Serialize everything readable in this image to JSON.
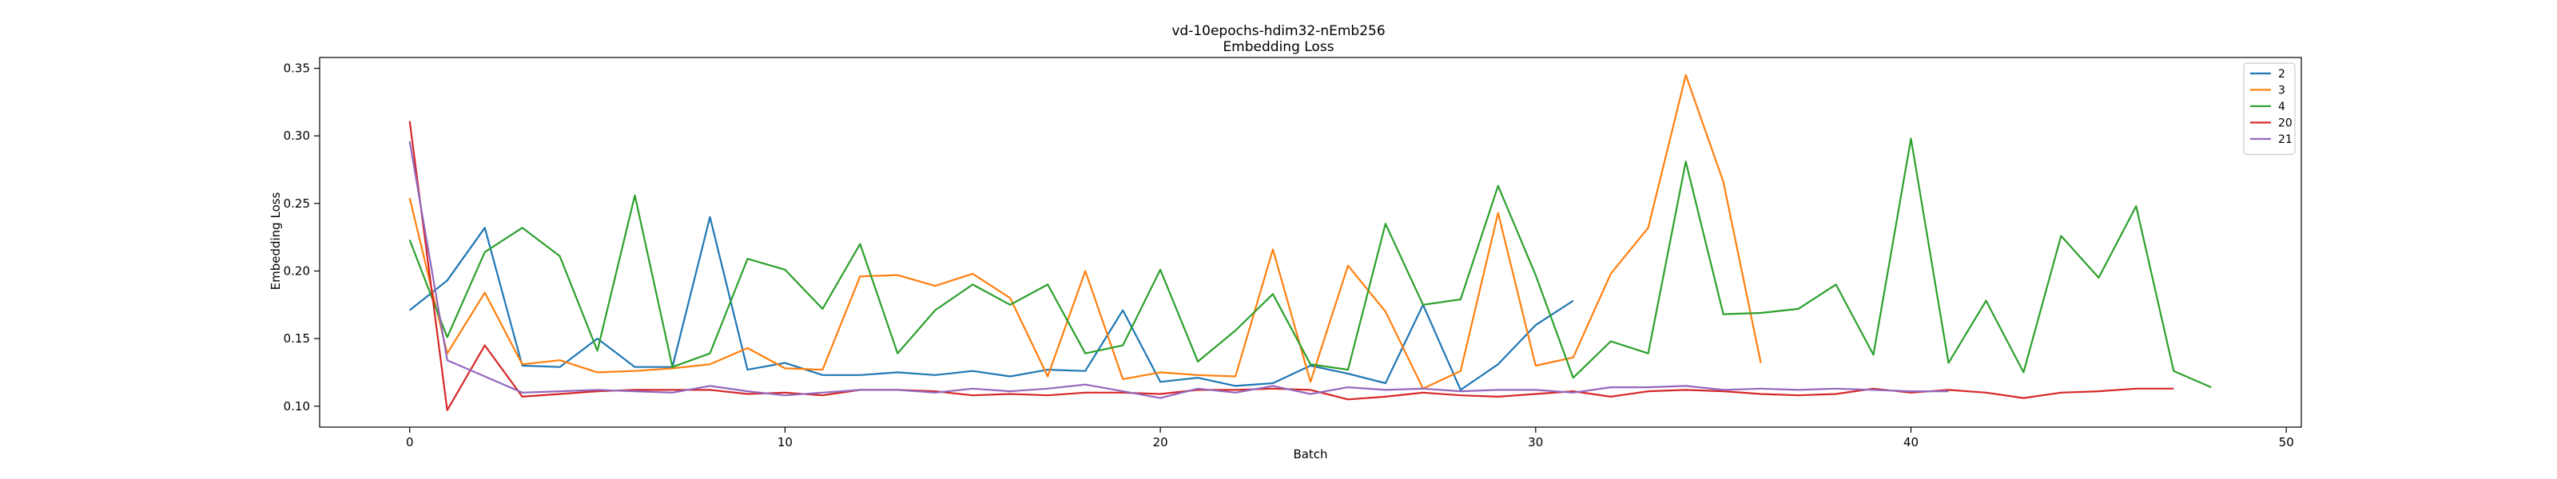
{
  "chart_data": {
    "type": "line",
    "title": "vd-10epochs-hdim32-nEmb256",
    "subtitle": "Embedding Loss",
    "xlabel": "Batch",
    "ylabel": "Embedding Loss",
    "xlim": [
      -2.4,
      50.4
    ],
    "ylim": [
      0.0845,
      0.358
    ],
    "xticks": [
      0,
      10,
      20,
      30,
      40,
      50
    ],
    "yticks": [
      0.1,
      0.15,
      0.2,
      0.25,
      0.3,
      0.35
    ],
    "ytick_labels": [
      "0.10",
      "0.15",
      "0.20",
      "0.25",
      "0.30",
      "0.35"
    ],
    "grid": false,
    "legend_position": "top-right",
    "series": [
      {
        "name": "2",
        "color": "#1f77b4",
        "x": [
          0,
          1,
          2,
          3,
          4,
          5,
          6,
          7,
          8,
          9,
          10,
          11,
          12,
          13,
          14,
          15,
          16,
          17,
          18,
          19,
          20,
          21,
          22,
          23,
          24,
          25,
          26,
          27,
          28,
          29,
          30,
          31
        ],
        "values": [
          0.171,
          0.193,
          0.232,
          0.13,
          0.129,
          0.15,
          0.129,
          0.129,
          0.24,
          0.127,
          0.132,
          0.123,
          0.123,
          0.125,
          0.123,
          0.126,
          0.122,
          0.127,
          0.126,
          0.171,
          0.118,
          0.121,
          0.115,
          0.117,
          0.13,
          0.124,
          0.117,
          0.175,
          0.112,
          0.131,
          0.16,
          0.178
        ]
      },
      {
        "name": "3",
        "color": "#ff7f0e",
        "x": [
          0,
          1,
          2,
          3,
          4,
          5,
          6,
          7,
          8,
          9,
          10,
          11,
          12,
          13,
          14,
          15,
          16,
          17,
          18,
          19,
          20,
          21,
          22,
          23,
          24,
          25,
          26,
          27,
          28,
          29,
          30,
          31,
          32,
          33,
          34,
          35,
          36
        ],
        "values": [
          0.254,
          0.139,
          0.184,
          0.131,
          0.134,
          0.125,
          0.126,
          0.128,
          0.131,
          0.143,
          0.128,
          0.127,
          0.196,
          0.197,
          0.189,
          0.198,
          0.18,
          0.122,
          0.2,
          0.12,
          0.125,
          0.123,
          0.122,
          0.216,
          0.118,
          0.204,
          0.17,
          0.113,
          0.126,
          0.243,
          0.13,
          0.136,
          0.198,
          0.232,
          0.345,
          0.266,
          0.132
        ]
      },
      {
        "name": "4",
        "color": "#2ca02c",
        "x": [
          0,
          1,
          2,
          3,
          4,
          5,
          6,
          7,
          8,
          9,
          10,
          11,
          12,
          13,
          14,
          15,
          16,
          17,
          18,
          19,
          20,
          21,
          22,
          23,
          24,
          25,
          26,
          27,
          28,
          29,
          30,
          31,
          32,
          33,
          34,
          35,
          36,
          37,
          38,
          39,
          40,
          41,
          42,
          43,
          44,
          45,
          46,
          47,
          48
        ],
        "values": [
          0.223,
          0.151,
          0.214,
          0.232,
          0.211,
          0.141,
          0.256,
          0.129,
          0.139,
          0.209,
          0.201,
          0.172,
          0.22,
          0.139,
          0.171,
          0.19,
          0.175,
          0.19,
          0.139,
          0.145,
          0.201,
          0.133,
          0.156,
          0.183,
          0.131,
          0.127,
          0.235,
          0.175,
          0.179,
          0.263,
          0.197,
          0.121,
          0.148,
          0.139,
          0.281,
          0.168,
          0.169,
          0.172,
          0.19,
          0.138,
          0.298,
          0.132,
          0.178,
          0.125,
          0.226,
          0.195,
          0.248,
          0.126,
          0.114
        ]
      },
      {
        "name": "20",
        "color": "#d62728",
        "x": [
          0,
          1,
          2,
          3,
          4,
          5,
          6,
          7,
          8,
          9,
          10,
          11,
          12,
          13,
          14,
          15,
          16,
          17,
          18,
          19,
          20,
          21,
          22,
          23,
          24,
          25,
          26,
          27,
          28,
          29,
          30,
          31,
          32,
          33,
          34,
          35,
          36,
          37,
          38,
          39,
          40,
          41,
          42,
          43,
          44,
          45,
          46,
          47
        ],
        "values": [
          0.311,
          0.097,
          0.145,
          0.107,
          0.109,
          0.111,
          0.112,
          0.112,
          0.112,
          0.109,
          0.11,
          0.108,
          0.112,
          0.112,
          0.111,
          0.108,
          0.109,
          0.108,
          0.11,
          0.11,
          0.109,
          0.112,
          0.112,
          0.113,
          0.112,
          0.105,
          0.107,
          0.11,
          0.108,
          0.107,
          0.109,
          0.111,
          0.107,
          0.111,
          0.112,
          0.111,
          0.109,
          0.108,
          0.109,
          0.113,
          0.11,
          0.112,
          0.11,
          0.106,
          0.11,
          0.111,
          0.113,
          0.113
        ]
      },
      {
        "name": "21",
        "color": "#9467bd",
        "x": [
          0,
          1,
          2,
          3,
          4,
          5,
          6,
          7,
          8,
          9,
          10,
          11,
          12,
          13,
          14,
          15,
          16,
          17,
          18,
          19,
          20,
          21,
          22,
          23,
          24,
          25,
          26,
          27,
          28,
          29,
          30,
          31,
          32,
          33,
          34,
          35,
          36,
          37,
          38,
          39,
          40,
          41
        ],
        "values": [
          0.296,
          0.134,
          0.122,
          0.11,
          0.111,
          0.112,
          0.111,
          0.11,
          0.115,
          0.111,
          0.108,
          0.11,
          0.112,
          0.112,
          0.11,
          0.113,
          0.111,
          0.113,
          0.116,
          0.111,
          0.106,
          0.113,
          0.11,
          0.115,
          0.109,
          0.114,
          0.112,
          0.113,
          0.111,
          0.112,
          0.112,
          0.11,
          0.114,
          0.114,
          0.115,
          0.112,
          0.113,
          0.112,
          0.113,
          0.112,
          0.111,
          0.111
        ]
      }
    ]
  }
}
